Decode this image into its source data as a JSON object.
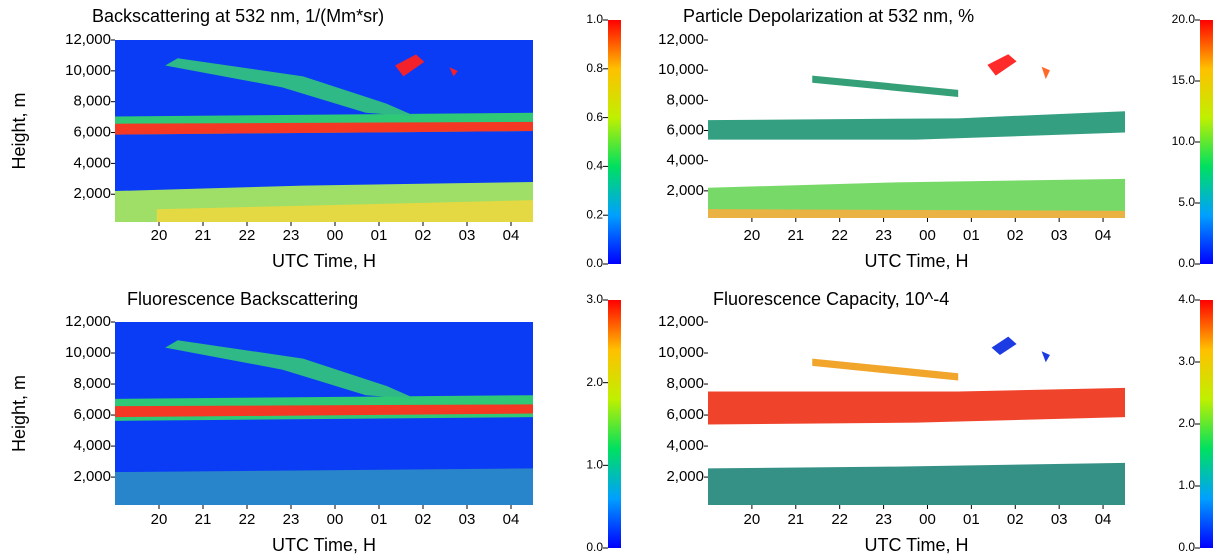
{
  "chart_data": [
    {
      "type": "heatmap",
      "title": "Backscattering at 532 nm, 1/(Mm*sr)",
      "xlabel": "UTC Time, H",
      "ylabel": "Height, m",
      "xlim": [
        19.0,
        28.5
      ],
      "xticks": [
        20,
        21,
        22,
        23,
        {
          "value": 24,
          "label": "00"
        },
        {
          "value": 25,
          "label": "01"
        },
        {
          "value": 26,
          "label": "02"
        },
        {
          "value": 27,
          "label": "03"
        },
        {
          "value": 28,
          "label": "04"
        }
      ],
      "ylim": [
        200,
        12000
      ],
      "yticks": [
        {
          "value": 2000,
          "label": "2,000"
        },
        {
          "value": 4000,
          "label": "4,000"
        },
        {
          "value": 6000,
          "label": "6,000"
        },
        {
          "value": 8000,
          "label": "8,000"
        },
        {
          "value": 10000,
          "label": "10,000"
        },
        {
          "value": 12000,
          "label": "12,000"
        }
      ],
      "zlim": [
        0,
        1
      ],
      "zticks": [
        {
          "value": 0,
          "label": "0.0"
        },
        0.2,
        0.4,
        0.6,
        0.8,
        {
          "value": 1,
          "label": "1.0"
        }
      ],
      "colorscale": [
        "#0000ff",
        "#00a0ff",
        "#00e060",
        "#c0f000",
        "#ffc000",
        "#ff0000"
      ]
    },
    {
      "type": "heatmap",
      "title": "Particle Depolarization at 532 nm, %",
      "xlabel": "UTC Time, H",
      "xlim": [
        19.0,
        28.5
      ],
      "xticks": [
        20,
        21,
        22,
        23,
        {
          "value": 24,
          "label": "00"
        },
        {
          "value": 25,
          "label": "01"
        },
        {
          "value": 26,
          "label": "02"
        },
        {
          "value": 27,
          "label": "03"
        },
        {
          "value": 28,
          "label": "04"
        }
      ],
      "ylim": [
        200,
        12000
      ],
      "yticks": [
        {
          "value": 2000,
          "label": "2,000"
        },
        {
          "value": 4000,
          "label": "4,000"
        },
        {
          "value": 6000,
          "label": "6,000"
        },
        {
          "value": 8000,
          "label": "8,000"
        },
        {
          "value": 10000,
          "label": "10,000"
        },
        {
          "value": 12000,
          "label": "12,000"
        }
      ],
      "zlim": [
        0,
        20
      ],
      "zticks": [
        {
          "value": 0,
          "label": "0.0"
        },
        {
          "value": 5,
          "label": "5.0"
        },
        {
          "value": 10,
          "label": "10.0"
        },
        {
          "value": 15,
          "label": "15.0"
        },
        {
          "value": 20,
          "label": "20.0"
        }
      ],
      "colorscale": [
        "#0000ff",
        "#00a0ff",
        "#00e060",
        "#c0f000",
        "#ffc000",
        "#ff0000"
      ]
    },
    {
      "type": "heatmap",
      "title": "Fluorescence Backscattering",
      "xlabel": "UTC Time, H",
      "ylabel": "Height, m",
      "xlim": [
        19.0,
        28.5
      ],
      "xticks": [
        20,
        21,
        22,
        23,
        {
          "value": 24,
          "label": "00"
        },
        {
          "value": 25,
          "label": "01"
        },
        {
          "value": 26,
          "label": "02"
        },
        {
          "value": 27,
          "label": "03"
        },
        {
          "value": 28,
          "label": "04"
        }
      ],
      "ylim": [
        200,
        12000
      ],
      "yticks": [
        {
          "value": 2000,
          "label": "2,000"
        },
        {
          "value": 4000,
          "label": "4,000"
        },
        {
          "value": 6000,
          "label": "6,000"
        },
        {
          "value": 8000,
          "label": "8,000"
        },
        {
          "value": 10000,
          "label": "10,000"
        },
        {
          "value": 12000,
          "label": "12,000"
        }
      ],
      "zlim": [
        0,
        3
      ],
      "zticks": [
        {
          "value": 0,
          "label": "0.0"
        },
        {
          "value": 1,
          "label": "1.0"
        },
        {
          "value": 2,
          "label": "2.0"
        },
        {
          "value": 3,
          "label": "3.0"
        }
      ],
      "colorscale": [
        "#0000ff",
        "#00a0ff",
        "#00e060",
        "#c0f000",
        "#ffc000",
        "#ff0000"
      ]
    },
    {
      "type": "heatmap",
      "title": "Fluorescence Capacity, 10^-4",
      "xlabel": "UTC Time, H",
      "xlim": [
        19.0,
        28.5
      ],
      "xticks": [
        20,
        21,
        22,
        23,
        {
          "value": 24,
          "label": "00"
        },
        {
          "value": 25,
          "label": "01"
        },
        {
          "value": 26,
          "label": "02"
        },
        {
          "value": 27,
          "label": "03"
        },
        {
          "value": 28,
          "label": "04"
        }
      ],
      "ylim": [
        200,
        12000
      ],
      "yticks": [
        {
          "value": 2000,
          "label": "2,000"
        },
        {
          "value": 4000,
          "label": "4,000"
        },
        {
          "value": 6000,
          "label": "6,000"
        },
        {
          "value": 8000,
          "label": "8,000"
        },
        {
          "value": 10000,
          "label": "10,000"
        },
        {
          "value": 12000,
          "label": "12,000"
        }
      ],
      "zlim": [
        0,
        4
      ],
      "zticks": [
        {
          "value": 0,
          "label": "0.0"
        },
        {
          "value": 1,
          "label": "1.0"
        },
        {
          "value": 2,
          "label": "2.0"
        },
        {
          "value": 3,
          "label": "3.0"
        },
        {
          "value": 4,
          "label": "4.0"
        }
      ],
      "colorscale": [
        "#0000ff",
        "#00a0ff",
        "#00e060",
        "#c0f000",
        "#ffc000",
        "#ff0000"
      ]
    }
  ]
}
